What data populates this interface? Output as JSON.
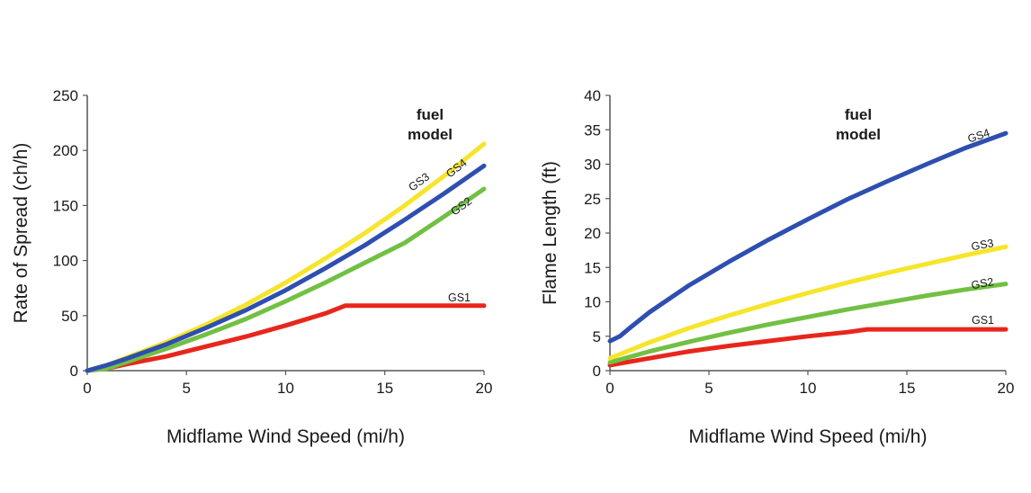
{
  "chart_data": [
    {
      "type": "line",
      "title": "",
      "xlabel": "Midflame Wind Speed (mi/h)",
      "ylabel": "Rate of Spread (ch/h)",
      "xlim": [
        0,
        20
      ],
      "ylim": [
        0,
        250
      ],
      "xticks": [
        0,
        5,
        10,
        15,
        20
      ],
      "yticks": [
        0,
        50,
        100,
        150,
        200,
        250
      ],
      "grid": false,
      "annotation": [
        "fuel",
        "model"
      ],
      "series": [
        {
          "name": "GS1",
          "color": "#e8261c",
          "x": [
            0,
            1,
            2,
            4,
            6,
            8,
            10,
            12,
            13,
            14,
            16,
            18,
            20
          ],
          "y": [
            0,
            2,
            6,
            13,
            22,
            31,
            41,
            52,
            59,
            59,
            59,
            59,
            59
          ]
        },
        {
          "name": "GS2",
          "color": "#72c043",
          "x": [
            0,
            1,
            2,
            4,
            6,
            8,
            10,
            12,
            14,
            16,
            18,
            20
          ],
          "y": [
            0,
            2,
            8,
            20,
            33,
            47,
            63,
            80,
            98,
            116,
            140,
            165
          ]
        },
        {
          "name": "GS3",
          "color": "#f6e52a",
          "x": [
            0,
            1,
            2,
            4,
            6,
            8,
            10,
            12,
            14,
            16,
            18,
            20
          ],
          "y": [
            0,
            5,
            12,
            26,
            42,
            60,
            80,
            102,
            125,
            150,
            177,
            206
          ]
        },
        {
          "name": "GS4",
          "color": "#2e4fb0",
          "x": [
            0,
            1,
            2,
            4,
            6,
            8,
            10,
            12,
            14,
            16,
            18,
            20
          ],
          "y": [
            0,
            5,
            11,
            24,
            39,
            55,
            73,
            93,
            114,
            137,
            161,
            186
          ]
        }
      ]
    },
    {
      "type": "line",
      "title": "",
      "xlabel": "Midflame Wind Speed (mi/h)",
      "ylabel": "Flame Length (ft)",
      "xlim": [
        0,
        20
      ],
      "ylim": [
        0,
        40
      ],
      "xticks": [
        0,
        5,
        10,
        15,
        20
      ],
      "yticks": [
        0,
        5,
        10,
        15,
        20,
        25,
        30,
        35,
        40
      ],
      "grid": false,
      "annotation": [
        "fuel",
        "model"
      ],
      "series": [
        {
          "name": "GS1",
          "color": "#e8261c",
          "x": [
            0,
            2,
            4,
            6,
            8,
            10,
            12,
            13,
            14,
            16,
            18,
            20
          ],
          "y": [
            0.8,
            1.8,
            2.8,
            3.6,
            4.3,
            5.0,
            5.6,
            6.0,
            6.0,
            6.0,
            6.0,
            6.0
          ]
        },
        {
          "name": "GS2",
          "color": "#72c043",
          "x": [
            0,
            2,
            4,
            6,
            8,
            10,
            12,
            14,
            16,
            18,
            20
          ],
          "y": [
            1.2,
            2.8,
            4.2,
            5.5,
            6.7,
            7.8,
            8.9,
            9.9,
            10.9,
            11.8,
            12.6
          ]
        },
        {
          "name": "GS3",
          "color": "#f6e52a",
          "x": [
            0,
            2,
            4,
            6,
            8,
            10,
            12,
            14,
            16,
            18,
            20
          ],
          "y": [
            1.8,
            4.1,
            6.2,
            8.0,
            9.7,
            11.3,
            12.8,
            14.2,
            15.5,
            16.8,
            18.0
          ]
        },
        {
          "name": "GS4",
          "color": "#2e4fb0",
          "x": [
            0,
            0.5,
            1,
            2,
            4,
            6,
            8,
            10,
            12,
            14,
            16,
            18,
            20
          ],
          "y": [
            4.3,
            5.0,
            6.2,
            8.5,
            12.4,
            15.8,
            19.0,
            22.0,
            24.9,
            27.5,
            30.0,
            32.4,
            34.5
          ]
        }
      ]
    }
  ]
}
